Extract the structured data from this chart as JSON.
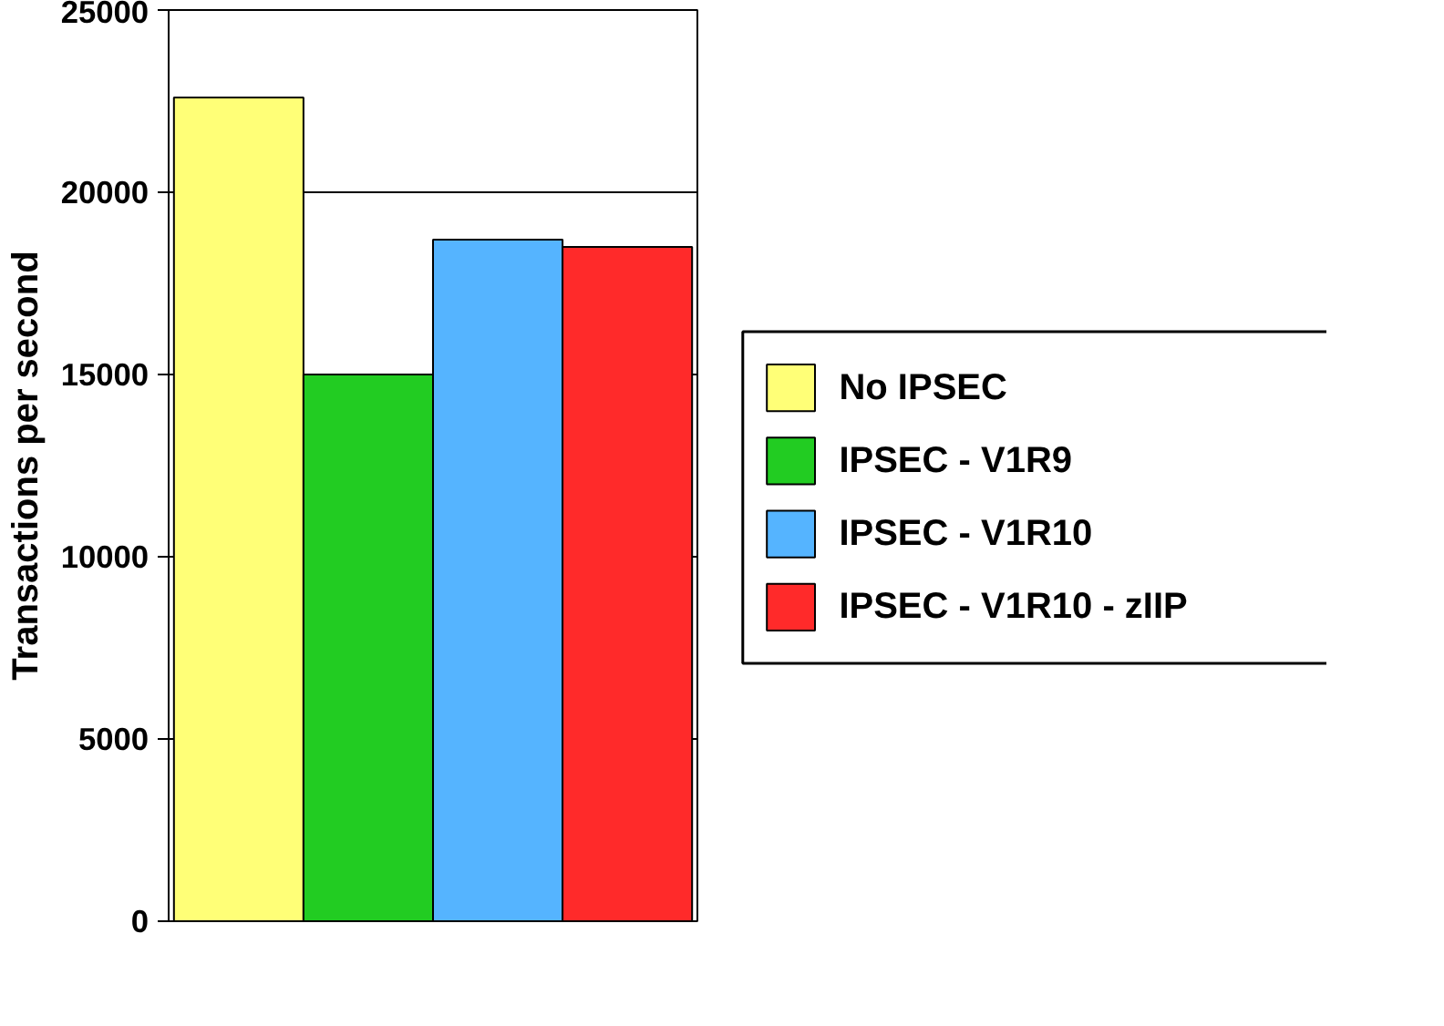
{
  "chart_data": {
    "type": "bar",
    "ylabel": "Transactions per second",
    "categories": [
      null
    ],
    "series": [
      {
        "name": "No IPSEC",
        "color": "#ffff77",
        "values": [
          22600
        ]
      },
      {
        "name": "IPSEC - V1R9",
        "color": "#22cc22",
        "values": [
          15000
        ]
      },
      {
        "name": "IPSEC - V1R10",
        "color": "#55b4ff",
        "values": [
          18700
        ]
      },
      {
        "name": "IPSEC - V1R10 - zIIP",
        "color": "#ff2a2a",
        "values": [
          18500
        ]
      }
    ],
    "ylim": [
      0,
      25000
    ],
    "yticks": [
      0,
      5000,
      10000,
      15000,
      20000,
      25000
    ],
    "grid": "y",
    "legend": "right"
  }
}
